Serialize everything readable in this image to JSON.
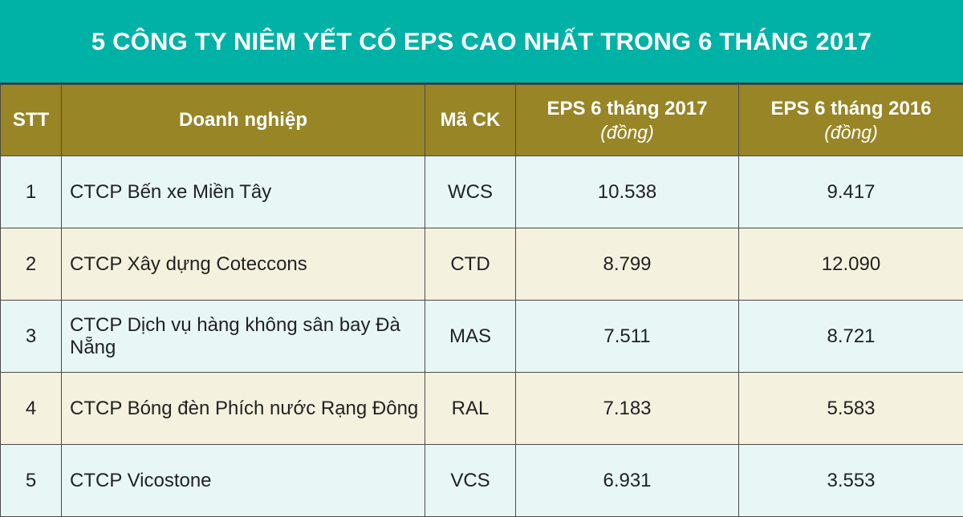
{
  "title": "5 CÔNG TY NIÊM YẾT CÓ EPS CAO NHẤT TRONG 6 THÁNG 2017",
  "colors": {
    "title_bg": "#00b2a6",
    "header_bg": "#988526",
    "row_odd_bg": "#e8f6f6",
    "row_even_bg": "#f5f1df"
  },
  "chart_data": {
    "type": "table",
    "title": "5 CÔNG TY NIÊM YẾT CÓ EPS CAO NHẤT TRONG 6 THÁNG 2017",
    "columns": [
      {
        "label": "STT",
        "unit": ""
      },
      {
        "label": "Doanh nghiệp",
        "unit": ""
      },
      {
        "label": "Mã CK",
        "unit": ""
      },
      {
        "label": "EPS 6 tháng 2017",
        "unit": "(đồng)"
      },
      {
        "label": "EPS 6 tháng 2016",
        "unit": "(đồng)"
      }
    ],
    "rows": [
      {
        "stt": "1",
        "company": "CTCP Bến xe Miền Tây",
        "code": "WCS",
        "eps_2017": "10.538",
        "eps_2016": "9.417"
      },
      {
        "stt": "2",
        "company": "CTCP Xây dựng Coteccons",
        "code": "CTD",
        "eps_2017": "8.799",
        "eps_2016": "12.090"
      },
      {
        "stt": "3",
        "company": "CTCP Dịch vụ hàng không sân bay Đà Nẵng",
        "code": "MAS",
        "eps_2017": "7.511",
        "eps_2016": "8.721"
      },
      {
        "stt": "4",
        "company": "CTCP Bóng đèn Phích nước Rạng Đông",
        "code": "RAL",
        "eps_2017": "7.183",
        "eps_2016": "5.583"
      },
      {
        "stt": "5",
        "company": "CTCP Vicostone",
        "code": "VCS",
        "eps_2017": "6.931",
        "eps_2016": "3.553"
      }
    ]
  }
}
